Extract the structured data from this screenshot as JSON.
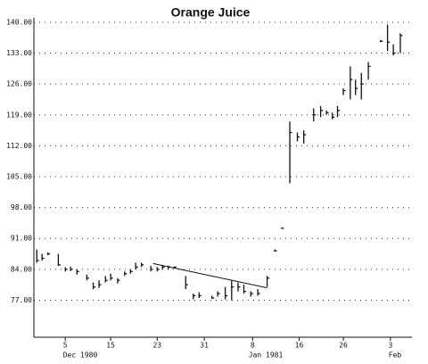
{
  "chart_data": {
    "type": "hlc",
    "title": "Orange Juice",
    "color": "#111111",
    "xlim": [
      0,
      65
    ],
    "ylim": [
      68.6,
      141
    ],
    "yticks": [
      {
        "value": 77,
        "label": "77.00"
      },
      {
        "value": 84,
        "label": "84.00"
      },
      {
        "value": 91,
        "label": "91.00"
      },
      {
        "value": 98,
        "label": "98.00"
      },
      {
        "value": 105,
        "label": "105.00"
      },
      {
        "value": 112,
        "label": "112.00"
      },
      {
        "value": 119,
        "label": "119.00"
      },
      {
        "value": 126,
        "label": "126.00"
      },
      {
        "value": 133,
        "label": "133.00"
      },
      {
        "value": 140,
        "label": "140.00"
      }
    ],
    "xticks": [
      {
        "value": 5.4,
        "label": "5"
      },
      {
        "value": 13.2,
        "label": "15"
      },
      {
        "value": 21.2,
        "label": "23"
      },
      {
        "value": 29.3,
        "label": "31"
      },
      {
        "value": 37.6,
        "label": "8"
      },
      {
        "value": 45.6,
        "label": "16"
      },
      {
        "value": 53.2,
        "label": "26"
      },
      {
        "value": 61.3,
        "label": "3"
      }
    ],
    "period_labels": [
      "Dec 1980",
      "Jan 1981",
      "Feb"
    ],
    "grid": true,
    "series": [
      {
        "x": [
          0.5,
          1.4,
          2.4,
          4.2,
          5.4,
          6.3,
          7.4,
          9.1,
          10.2,
          11.2,
          12.3,
          13.2,
          14.4,
          15.6,
          16.6,
          17.5,
          18.5,
          20.1,
          21.2,
          22.1,
          23.1,
          24.1,
          26.1,
          27.4,
          28.4,
          30.6,
          31.6,
          32.9,
          34.0,
          35.1,
          36.1,
          37.3,
          38.5,
          40.1,
          41.4,
          42.6,
          44.0,
          45.3,
          46.4,
          48.1,
          49.3,
          50.3,
          51.3,
          52.2,
          53.2,
          54.4,
          55.3,
          56.3,
          57.5,
          59.6,
          60.8,
          61.8,
          63.0
        ],
        "high": [
          88.5,
          87.5,
          87.8,
          87.5,
          84.5,
          84.6,
          84,
          82.8,
          81,
          81.5,
          82.5,
          83,
          82,
          83.5,
          84,
          85.5,
          85.5,
          84.8,
          84.5,
          85,
          84.8,
          84.6,
          82.5,
          78.5,
          78.8,
          78,
          79,
          80,
          81.5,
          81,
          80.5,
          79,
          79.5,
          82.5,
          88.5,
          93.5,
          117.5,
          115,
          115.5,
          120.5,
          121,
          120,
          119.5,
          121,
          125,
          130,
          127,
          128.5,
          131,
          136,
          139.5,
          135,
          137.5
        ],
        "low": [
          85.5,
          86,
          87.2,
          84.8,
          83.5,
          83.6,
          82.8,
          81.5,
          79.5,
          79.8,
          81,
          81.5,
          80.8,
          82.5,
          83,
          84,
          84.5,
          83.5,
          83.5,
          84,
          84,
          84.2,
          79.5,
          77.2,
          77.5,
          77.3,
          77.8,
          77.2,
          77,
          79,
          78.5,
          77.8,
          78,
          80,
          88,
          93.2,
          103.5,
          113,
          112.5,
          117.5,
          118.5,
          119,
          118,
          118.5,
          123.5,
          122.5,
          123.5,
          122.5,
          127,
          135.5,
          133.5,
          132.5,
          133
        ],
        "close": [
          86,
          86.5,
          87.5,
          85,
          84,
          84,
          83.5,
          82,
          80,
          80.5,
          81.5,
          82,
          81.5,
          83,
          83.5,
          84.5,
          85,
          84,
          84,
          84.5,
          84.5,
          84.5,
          80.5,
          78,
          78,
          77.5,
          78.5,
          78,
          80,
          80,
          79,
          78.5,
          78.5,
          82,
          88.2,
          93.3,
          115,
          114,
          114.5,
          119,
          120,
          119.5,
          118.5,
          120,
          124.5,
          127,
          125,
          126,
          130,
          135.7,
          135.5,
          133,
          137
        ]
      }
    ],
    "trendline": {
      "x": [
        20.5,
        40.1
      ],
      "y": [
        85.3,
        79.8
      ]
    }
  }
}
